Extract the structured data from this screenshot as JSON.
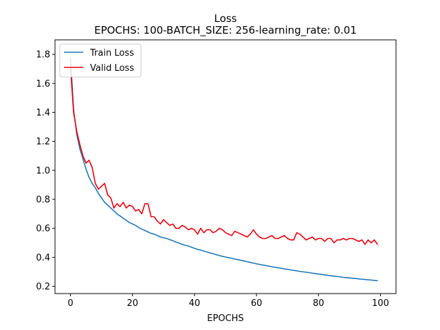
{
  "chart_data": {
    "type": "line",
    "title": "Loss",
    "subtitle": "EPOCHS: 100-BATCH_SIZE: 256-learning_rate: 0.01",
    "xlabel": "EPOCHS",
    "ylabel": "",
    "xlim": [
      -5,
      105
    ],
    "ylim": [
      0.15,
      1.9
    ],
    "xticks": [
      0,
      20,
      40,
      60,
      80,
      100
    ],
    "yticks": [
      0.2,
      0.4,
      0.6,
      0.8,
      1.0,
      1.2,
      1.4,
      1.6,
      1.8
    ],
    "ytick_labels": [
      "0.2",
      "0.4",
      "0.6",
      "0.8",
      "1.0",
      "1.2",
      "1.4",
      "1.6",
      "1.8"
    ],
    "grid": false,
    "legend_position": "top-left",
    "series": [
      {
        "name": "Train Loss",
        "color": "#1f77b4",
        "x": [
          0,
          1,
          2,
          3,
          4,
          5,
          6,
          7,
          8,
          9,
          10,
          11,
          12,
          13,
          14,
          15,
          16,
          17,
          18,
          19,
          20,
          21,
          22,
          23,
          24,
          25,
          26,
          27,
          28,
          29,
          30,
          31,
          32,
          33,
          34,
          35,
          36,
          37,
          38,
          39,
          40,
          41,
          42,
          43,
          44,
          45,
          46,
          47,
          48,
          49,
          50,
          51,
          52,
          53,
          54,
          55,
          56,
          57,
          58,
          59,
          60,
          61,
          62,
          63,
          64,
          65,
          66,
          67,
          68,
          69,
          70,
          71,
          72,
          73,
          74,
          75,
          76,
          77,
          78,
          79,
          80,
          81,
          82,
          83,
          84,
          85,
          86,
          87,
          88,
          89,
          90,
          91,
          92,
          93,
          94,
          95,
          96,
          97,
          98,
          99
        ],
        "values": [
          1.78,
          1.42,
          1.25,
          1.15,
          1.08,
          1.01,
          0.95,
          0.91,
          0.88,
          0.84,
          0.81,
          0.78,
          0.76,
          0.74,
          0.72,
          0.7,
          0.685,
          0.67,
          0.655,
          0.64,
          0.63,
          0.62,
          0.605,
          0.595,
          0.585,
          0.575,
          0.565,
          0.56,
          0.55,
          0.54,
          0.535,
          0.53,
          0.522,
          0.515,
          0.505,
          0.498,
          0.49,
          0.483,
          0.478,
          0.47,
          0.462,
          0.455,
          0.45,
          0.443,
          0.437,
          0.43,
          0.425,
          0.418,
          0.412,
          0.407,
          0.402,
          0.398,
          0.393,
          0.388,
          0.384,
          0.379,
          0.375,
          0.37,
          0.365,
          0.36,
          0.355,
          0.351,
          0.347,
          0.343,
          0.339,
          0.335,
          0.331,
          0.328,
          0.324,
          0.32,
          0.317,
          0.313,
          0.31,
          0.307,
          0.303,
          0.3,
          0.297,
          0.294,
          0.291,
          0.288,
          0.285,
          0.282,
          0.279,
          0.276,
          0.273,
          0.27,
          0.268,
          0.265,
          0.262,
          0.26,
          0.258,
          0.256,
          0.254,
          0.251,
          0.249,
          0.247,
          0.245,
          0.243,
          0.241,
          0.239
        ]
      },
      {
        "name": "Valid Loss",
        "color": "#e8000b",
        "x": [
          0,
          1,
          2,
          3,
          4,
          5,
          6,
          7,
          8,
          9,
          10,
          11,
          12,
          13,
          14,
          15,
          16,
          17,
          18,
          19,
          20,
          21,
          22,
          23,
          24,
          25,
          26,
          27,
          28,
          29,
          30,
          31,
          32,
          33,
          34,
          35,
          36,
          37,
          38,
          39,
          40,
          41,
          42,
          43,
          44,
          45,
          46,
          47,
          48,
          49,
          50,
          51,
          52,
          53,
          54,
          55,
          56,
          57,
          58,
          59,
          60,
          61,
          62,
          63,
          64,
          65,
          66,
          67,
          68,
          69,
          70,
          71,
          72,
          73,
          74,
          75,
          76,
          77,
          78,
          79,
          80,
          81,
          82,
          83,
          84,
          85,
          86,
          87,
          88,
          89,
          90,
          91,
          92,
          93,
          94,
          95,
          96,
          97,
          98,
          99
        ],
        "values": [
          1.71,
          1.4,
          1.27,
          1.18,
          1.1,
          1.05,
          1.07,
          1.02,
          0.91,
          0.87,
          0.89,
          0.91,
          0.83,
          0.81,
          0.74,
          0.77,
          0.75,
          0.78,
          0.74,
          0.76,
          0.75,
          0.72,
          0.73,
          0.7,
          0.77,
          0.77,
          0.68,
          0.68,
          0.65,
          0.63,
          0.66,
          0.64,
          0.62,
          0.63,
          0.6,
          0.6,
          0.62,
          0.61,
          0.59,
          0.6,
          0.59,
          0.56,
          0.6,
          0.57,
          0.59,
          0.59,
          0.57,
          0.58,
          0.6,
          0.59,
          0.57,
          0.56,
          0.55,
          0.58,
          0.57,
          0.56,
          0.55,
          0.54,
          0.56,
          0.59,
          0.56,
          0.54,
          0.53,
          0.53,
          0.54,
          0.55,
          0.53,
          0.53,
          0.54,
          0.55,
          0.53,
          0.52,
          0.52,
          0.57,
          0.56,
          0.54,
          0.52,
          0.53,
          0.54,
          0.52,
          0.53,
          0.53,
          0.51,
          0.53,
          0.53,
          0.5,
          0.52,
          0.52,
          0.53,
          0.52,
          0.53,
          0.53,
          0.52,
          0.51,
          0.52,
          0.49,
          0.52,
          0.5,
          0.52,
          0.49
        ]
      }
    ]
  }
}
